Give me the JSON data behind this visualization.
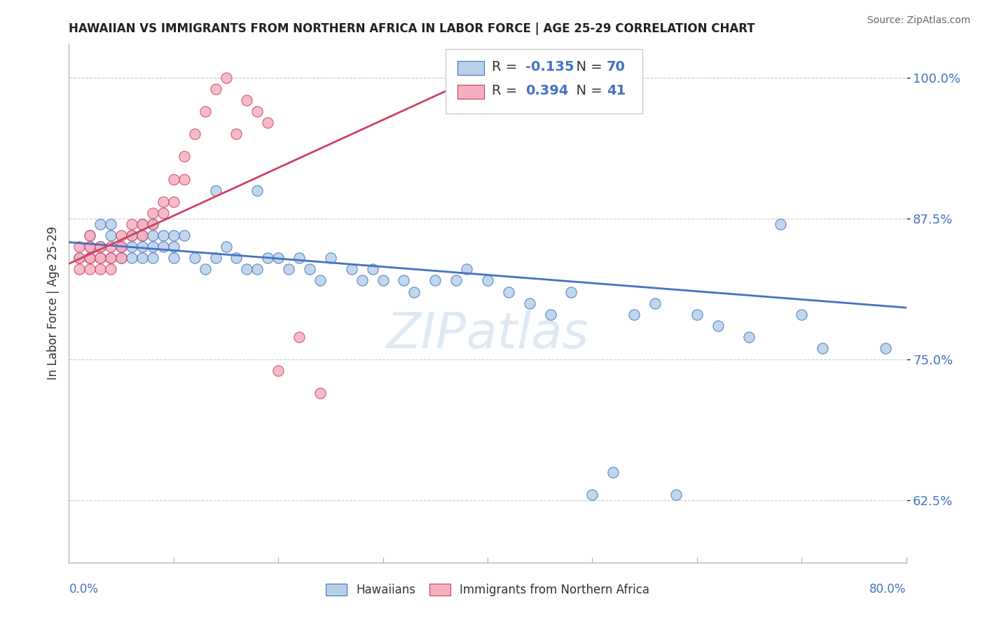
{
  "title": "HAWAIIAN VS IMMIGRANTS FROM NORTHERN AFRICA IN LABOR FORCE | AGE 25-29 CORRELATION CHART",
  "source": "Source: ZipAtlas.com",
  "ylabel": "In Labor Force | Age 25-29",
  "xlim": [
    0.0,
    0.8
  ],
  "ylim": [
    0.57,
    1.03
  ],
  "hawaiians_color": "#b8d0e8",
  "immigrants_color": "#f4b0c0",
  "trend_hawaii_color": "#4472c4",
  "trend_immig_color": "#d04060",
  "R_hawaii": -0.135,
  "N_hawaii": 70,
  "R_immig": 0.394,
  "N_immig": 41,
  "background_color": "#ffffff",
  "grid_color": "#cccccc",
  "axis_color": "#4472c4",
  "y_tick_positions": [
    0.625,
    0.75,
    0.875,
    1.0
  ],
  "y_tick_labels": [
    "62.5%",
    "75.0%",
    "87.5%",
    "100.0%"
  ],
  "hawaiians_x": [
    0.01,
    0.02,
    0.02,
    0.02,
    0.03,
    0.03,
    0.04,
    0.04,
    0.04,
    0.05,
    0.05,
    0.06,
    0.06,
    0.06,
    0.07,
    0.07,
    0.07,
    0.07,
    0.08,
    0.08,
    0.08,
    0.08,
    0.09,
    0.09,
    0.1,
    0.1,
    0.1,
    0.11,
    0.12,
    0.13,
    0.14,
    0.14,
    0.15,
    0.16,
    0.17,
    0.18,
    0.18,
    0.19,
    0.2,
    0.21,
    0.22,
    0.23,
    0.24,
    0.25,
    0.27,
    0.28,
    0.29,
    0.3,
    0.32,
    0.33,
    0.35,
    0.37,
    0.38,
    0.4,
    0.42,
    0.44,
    0.46,
    0.48,
    0.5,
    0.52,
    0.54,
    0.56,
    0.58,
    0.6,
    0.62,
    0.65,
    0.68,
    0.7,
    0.72,
    0.78
  ],
  "hawaiians_y": [
    0.84,
    0.85,
    0.84,
    0.86,
    0.85,
    0.87,
    0.86,
    0.84,
    0.87,
    0.85,
    0.84,
    0.86,
    0.85,
    0.84,
    0.87,
    0.86,
    0.85,
    0.84,
    0.87,
    0.86,
    0.85,
    0.84,
    0.86,
    0.85,
    0.86,
    0.85,
    0.84,
    0.86,
    0.84,
    0.83,
    0.84,
    0.9,
    0.85,
    0.84,
    0.83,
    0.83,
    0.9,
    0.84,
    0.84,
    0.83,
    0.84,
    0.83,
    0.82,
    0.84,
    0.83,
    0.82,
    0.83,
    0.82,
    0.82,
    0.81,
    0.82,
    0.82,
    0.83,
    0.82,
    0.81,
    0.8,
    0.79,
    0.81,
    0.63,
    0.65,
    0.79,
    0.8,
    0.63,
    0.79,
    0.78,
    0.77,
    0.87,
    0.79,
    0.76,
    0.76
  ],
  "immigrants_x": [
    0.01,
    0.01,
    0.01,
    0.02,
    0.02,
    0.02,
    0.02,
    0.02,
    0.03,
    0.03,
    0.03,
    0.03,
    0.04,
    0.04,
    0.04,
    0.05,
    0.05,
    0.05,
    0.06,
    0.06,
    0.07,
    0.07,
    0.08,
    0.08,
    0.09,
    0.09,
    0.1,
    0.1,
    0.11,
    0.11,
    0.12,
    0.13,
    0.14,
    0.15,
    0.16,
    0.17,
    0.18,
    0.19,
    0.2,
    0.22,
    0.24
  ],
  "immigrants_y": [
    0.84,
    0.85,
    0.83,
    0.84,
    0.85,
    0.86,
    0.83,
    0.84,
    0.84,
    0.85,
    0.83,
    0.84,
    0.85,
    0.84,
    0.83,
    0.85,
    0.84,
    0.86,
    0.87,
    0.86,
    0.87,
    0.86,
    0.88,
    0.87,
    0.89,
    0.88,
    0.91,
    0.89,
    0.93,
    0.91,
    0.95,
    0.97,
    0.99,
    1.0,
    0.95,
    0.98,
    0.97,
    0.96,
    0.74,
    0.77,
    0.72
  ],
  "trend_hawaii_x0": 0.0,
  "trend_hawaii_x1": 0.8,
  "trend_hawaii_y0": 0.854,
  "trend_hawaii_y1": 0.796,
  "trend_immig_x0": 0.0,
  "trend_immig_x1": 0.4,
  "trend_immig_y0": 0.835,
  "trend_immig_y1": 1.005
}
